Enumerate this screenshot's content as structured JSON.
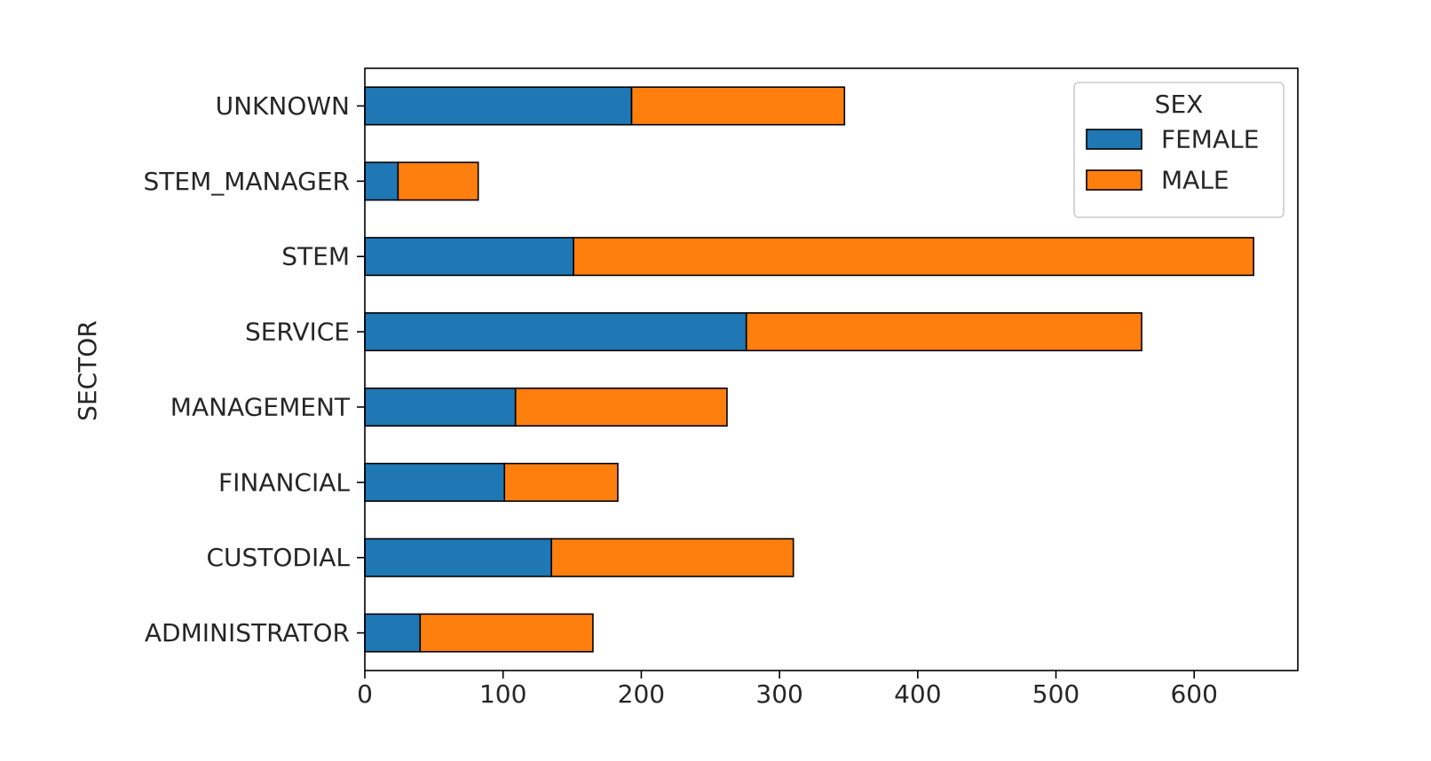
{
  "chart_data": {
    "type": "bar",
    "orientation": "horizontal",
    "stacked": true,
    "categories": [
      "ADMINISTRATOR",
      "CUSTODIAL",
      "FINANCIAL",
      "MANAGEMENT",
      "SERVICE",
      "STEM",
      "STEM_MANAGER",
      "UNKNOWN"
    ],
    "series": [
      {
        "name": "FEMALE",
        "color": "#1f77b4",
        "values": [
          40,
          135,
          101,
          109,
          276,
          151,
          24,
          193
        ]
      },
      {
        "name": "MALE",
        "color": "#ff7f0e",
        "values": [
          125,
          175,
          82,
          153,
          286,
          492,
          58,
          154
        ]
      }
    ],
    "title": "",
    "xlabel": "",
    "ylabel": "SECTOR",
    "xlim": [
      0,
      675
    ],
    "xticks": [
      0,
      100,
      200,
      300,
      400,
      500,
      600
    ],
    "grid": false,
    "legend": {
      "title": "SEX",
      "position": "top-right"
    }
  }
}
